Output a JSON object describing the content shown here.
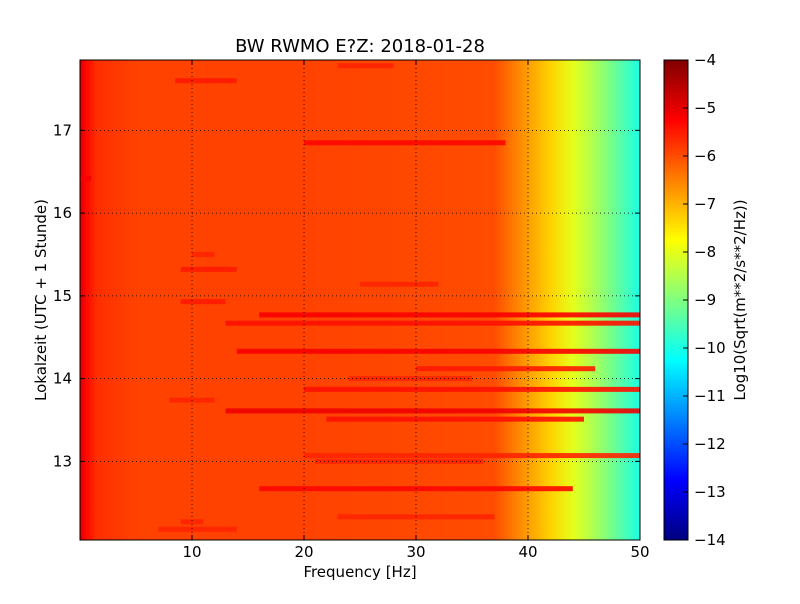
{
  "chart_data": {
    "type": "heatmap",
    "title": "BW RWMO E?Z: 2018-01-28",
    "xlabel": "Frequency [Hz]",
    "ylabel": "Lokalzeit (UTC + 1 Stunde)",
    "xlim": [
      0,
      50
    ],
    "ylim": [
      17.85,
      12.05
    ],
    "y_axis_inverted": true,
    "x_ticks": [
      10,
      20,
      30,
      40,
      50
    ],
    "x_tick_labels": [
      "10",
      "20",
      "30",
      "40",
      "50"
    ],
    "y_ticks": [
      13,
      14,
      15,
      16,
      17
    ],
    "y_tick_labels": [
      "13",
      "14",
      "15",
      "16",
      "17"
    ],
    "grid": "dotted",
    "colormap": "jet",
    "colorbar": {
      "label": "Log10(Sqrt(m**2/s**2/Hz))",
      "range": [
        -14,
        -4
      ],
      "ticks": [
        -4,
        -5,
        -6,
        -7,
        -8,
        -9,
        -10,
        -11,
        -12,
        -13,
        -14
      ],
      "tick_labels": [
        "−4",
        "−5",
        "−6",
        "−7",
        "−8",
        "−9",
        "−10",
        "−11",
        "−12",
        "−13",
        "−14"
      ]
    },
    "background_profile": {
      "frequency_hz": [
        0,
        0.5,
        1.5,
        5,
        20,
        37,
        40,
        42,
        44,
        46,
        48,
        50
      ],
      "value": [
        -4.9,
        -5.3,
        -5.7,
        -5.9,
        -5.9,
        -6.0,
        -6.8,
        -7.3,
        -8.0,
        -8.6,
        -9.3,
        -10.0
      ]
    },
    "high_amplitude_bands": [
      {
        "time": 12.18,
        "f_start": 7,
        "f_end": 14,
        "value": -5.6
      },
      {
        "time": 12.27,
        "f_start": 9,
        "f_end": 11,
        "value": -5.6
      },
      {
        "time": 12.33,
        "f_start": 23,
        "f_end": 37,
        "value": -5.6
      },
      {
        "time": 12.67,
        "f_start": 16,
        "f_end": 44,
        "value": -5.3
      },
      {
        "time": 13.0,
        "f_start": 21,
        "f_end": 36,
        "value": -5.6
      },
      {
        "time": 13.07,
        "f_start": 20,
        "f_end": 50,
        "value": -5.6
      },
      {
        "time": 13.51,
        "f_start": 22,
        "f_end": 45,
        "value": -5.4
      },
      {
        "time": 13.61,
        "f_start": 13,
        "f_end": 50,
        "value": -5.1
      },
      {
        "time": 13.74,
        "f_start": 8,
        "f_end": 12,
        "value": -5.6
      },
      {
        "time": 13.87,
        "f_start": 20,
        "f_end": 50,
        "value": -5.4
      },
      {
        "time": 14.0,
        "f_start": 24,
        "f_end": 35,
        "value": -5.6
      },
      {
        "time": 14.12,
        "f_start": 30,
        "f_end": 46,
        "value": -5.5
      },
      {
        "time": 14.33,
        "f_start": 14,
        "f_end": 50,
        "value": -5.2
      },
      {
        "time": 14.67,
        "f_start": 13,
        "f_end": 50,
        "value": -5.4
      },
      {
        "time": 14.77,
        "f_start": 16,
        "f_end": 50,
        "value": -5.2
      },
      {
        "time": 14.93,
        "f_start": 9,
        "f_end": 13,
        "value": -5.5
      },
      {
        "time": 15.14,
        "f_start": 25,
        "f_end": 32,
        "value": -5.6
      },
      {
        "time": 15.32,
        "f_start": 9,
        "f_end": 14,
        "value": -5.5
      },
      {
        "time": 15.5,
        "f_start": 10,
        "f_end": 12,
        "value": -5.6
      },
      {
        "time": 16.42,
        "f_start": 0,
        "f_end": 1,
        "value": -5.2
      },
      {
        "time": 16.85,
        "f_start": 20,
        "f_end": 38,
        "value": -5.3
      },
      {
        "time": 17.6,
        "f_start": 8.5,
        "f_end": 14,
        "value": -5.5
      },
      {
        "time": 17.78,
        "f_start": 23,
        "f_end": 28,
        "value": -5.6
      }
    ]
  }
}
